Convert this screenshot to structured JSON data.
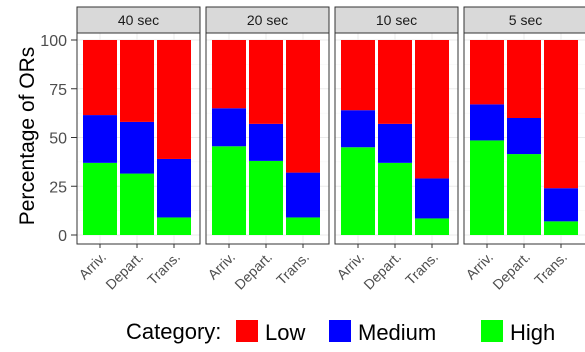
{
  "chart_data": {
    "type": "bar",
    "stacked": true,
    "ylabel": "Percentage of ORs",
    "xlabel": "",
    "ylim": [
      0,
      100
    ],
    "yticks": [
      0,
      25,
      50,
      75,
      100
    ],
    "grid": true,
    "legend": {
      "title": "Category:",
      "placement": "bottom"
    },
    "categories": [
      "Arriv.",
      "Depart.",
      "Trans."
    ],
    "facets": [
      {
        "label": "40 sec",
        "series": [
          {
            "name": "High",
            "values": [
              37,
              31.5,
              9
            ]
          },
          {
            "name": "Medium",
            "values": [
              24.5,
              26.5,
              30
            ]
          },
          {
            "name": "Low",
            "values": [
              38.5,
              42,
              61
            ]
          }
        ]
      },
      {
        "label": "20 sec",
        "series": [
          {
            "name": "High",
            "values": [
              45.5,
              38,
              9
            ]
          },
          {
            "name": "Medium",
            "values": [
              19.5,
              19,
              23
            ]
          },
          {
            "name": "Low",
            "values": [
              35,
              43,
              68
            ]
          }
        ]
      },
      {
        "label": "10 sec",
        "series": [
          {
            "name": "High",
            "values": [
              45,
              37,
              8.5
            ]
          },
          {
            "name": "Medium",
            "values": [
              19,
              20,
              20.5
            ]
          },
          {
            "name": "Low",
            "values": [
              36,
              43,
              71
            ]
          }
        ]
      },
      {
        "label": "5 sec",
        "series": [
          {
            "name": "High",
            "values": [
              48.5,
              41.5,
              7
            ]
          },
          {
            "name": "Medium",
            "values": [
              18.5,
              18.5,
              17
            ]
          },
          {
            "name": "Low",
            "values": [
              33,
              40,
              76
            ]
          }
        ]
      }
    ],
    "colors": {
      "Low": "#ff0000",
      "Medium": "#0000ff",
      "High": "#00ff00"
    },
    "legend_order": [
      "Low",
      "Medium",
      "High"
    ]
  }
}
